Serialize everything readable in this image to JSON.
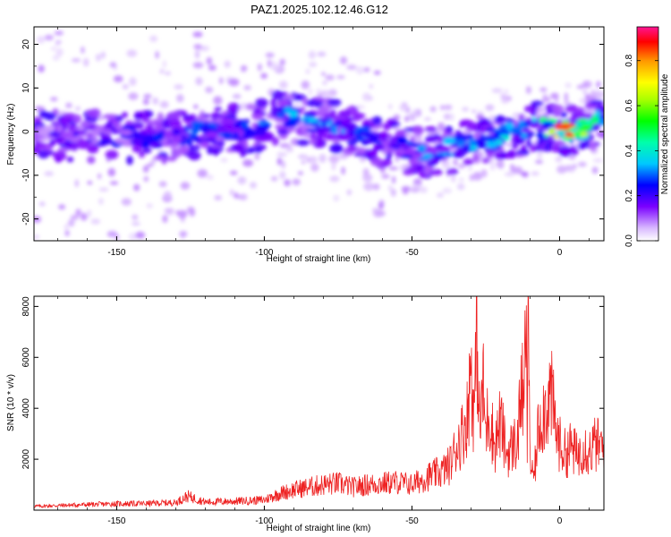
{
  "figure_title": "PAZ1.2025.102.12.46.G12",
  "colorbar": {
    "label": "Normalized spectral amplitude",
    "ticks": [
      "0.0",
      "0.2",
      "0.4",
      "0.6",
      "0.8"
    ],
    "range": [
      0,
      0.95
    ]
  },
  "chart_data": [
    {
      "type": "heatmap",
      "title": "",
      "xlabel": "Height of straight line (km)",
      "ylabel": "Frequency (Hz)",
      "xlim": [
        -178,
        15
      ],
      "ylim": [
        -25,
        24
      ],
      "x_ticks": [
        -150,
        -100,
        -50,
        0
      ],
      "x_tick_labels": [
        "-150",
        "-100",
        "-50",
        "0"
      ],
      "y_ticks": [
        -20,
        -10,
        0,
        10,
        20
      ],
      "y_tick_labels": [
        "-20",
        "-10",
        "0",
        "10",
        "20"
      ],
      "ridge_frequency": {
        "x": [
          -178,
          -165,
          -150,
          -135,
          -120,
          -105,
          -95,
          -85,
          -75,
          -65,
          -55,
          -45,
          -35,
          -25,
          -15,
          -8,
          -3,
          0,
          5,
          10,
          15
        ],
        "y": [
          -1,
          -1,
          -1,
          -1.5,
          0,
          0.5,
          3.5,
          2.5,
          1,
          -1.5,
          -3.5,
          -5,
          -3.5,
          -1.5,
          -0.5,
          1,
          1,
          0.5,
          0.2,
          1,
          3
        ]
      },
      "peak_amplitude": {
        "x": [
          -175,
          -150,
          -125,
          -100,
          -80,
          -60,
          -45,
          -25,
          -10,
          -5,
          0,
          5,
          12
        ],
        "y": [
          0.2,
          0.25,
          0.3,
          0.35,
          0.4,
          0.3,
          0.35,
          0.4,
          0.45,
          0.7,
          0.95,
          0.95,
          0.5
        ]
      }
    },
    {
      "type": "line",
      "title": "",
      "xlabel": "Height of straight line (km)",
      "ylabel": "SNR (10 * v/v)",
      "xlim": [
        -178,
        15
      ],
      "ylim": [
        0,
        8400
      ],
      "x_ticks": [
        -150,
        -100,
        -50,
        0
      ],
      "x_tick_labels": [
        "-150",
        "-100",
        "-50",
        "0"
      ],
      "y_ticks": [
        2000,
        4000,
        6000,
        8000
      ],
      "y_tick_labels": [
        "2000",
        "4000",
        "6000",
        "8000"
      ],
      "line_color": "#ee2222",
      "x": [
        -178,
        -165,
        -150,
        -140,
        -130,
        -126,
        -120,
        -110,
        -100,
        -95,
        -90,
        -85,
        -80,
        -75,
        -70,
        -65,
        -60,
        -55,
        -50,
        -45,
        -40,
        -37,
        -35,
        -33,
        -31,
        -30,
        -29,
        -28,
        -27,
        -26,
        -25,
        -24,
        -22,
        -20,
        -18,
        -16,
        -14,
        -13,
        -12,
        -11.5,
        -11,
        -10.5,
        -10,
        -9,
        -8,
        -7,
        -5,
        -3,
        -2,
        -1,
        0,
        2,
        4,
        6,
        8,
        10,
        12,
        15
      ],
      "y": [
        150,
        200,
        250,
        260,
        300,
        550,
        320,
        350,
        400,
        650,
        800,
        900,
        1000,
        1050,
        900,
        1000,
        1050,
        1100,
        1000,
        1300,
        1500,
        1800,
        2500,
        3000,
        3800,
        6000,
        3500,
        7000,
        3000,
        5000,
        3000,
        4000,
        2500,
        3500,
        2200,
        2500,
        2800,
        5200,
        3500,
        8400,
        2500,
        8200,
        2000,
        1200,
        2000,
        3500,
        4000,
        4600,
        3800,
        3000,
        2600,
        2200,
        2500,
        2100,
        2600,
        2300,
        2600,
        2400
      ]
    }
  ]
}
